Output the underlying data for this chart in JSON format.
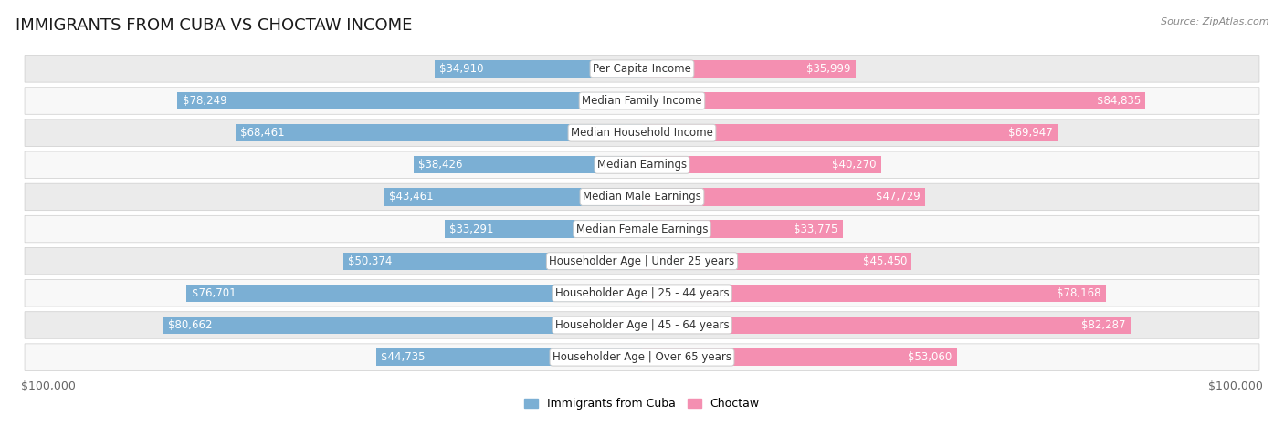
{
  "title": "IMMIGRANTS FROM CUBA VS CHOCTAW INCOME",
  "source": "Source: ZipAtlas.com",
  "categories": [
    "Per Capita Income",
    "Median Family Income",
    "Median Household Income",
    "Median Earnings",
    "Median Male Earnings",
    "Median Female Earnings",
    "Householder Age | Under 25 years",
    "Householder Age | 25 - 44 years",
    "Householder Age | 45 - 64 years",
    "Householder Age | Over 65 years"
  ],
  "cuba_values": [
    34910,
    78249,
    68461,
    38426,
    43461,
    33291,
    50374,
    76701,
    80662,
    44735
  ],
  "choctaw_values": [
    35999,
    84835,
    69947,
    40270,
    47729,
    33775,
    45450,
    78168,
    82287,
    53060
  ],
  "cuba_color": "#7bafd4",
  "choctaw_color": "#f48fb1",
  "cuba_label": "Immigrants from Cuba",
  "choctaw_label": "Choctaw",
  "max_value": 100000,
  "background_color": "#ffffff",
  "title_fontsize": 13,
  "label_fontsize": 8.5,
  "value_fontsize": 8.5,
  "axis_label_fontsize": 9,
  "cuba_inside_threshold": 0.3,
  "choctaw_inside_threshold": 0.3
}
